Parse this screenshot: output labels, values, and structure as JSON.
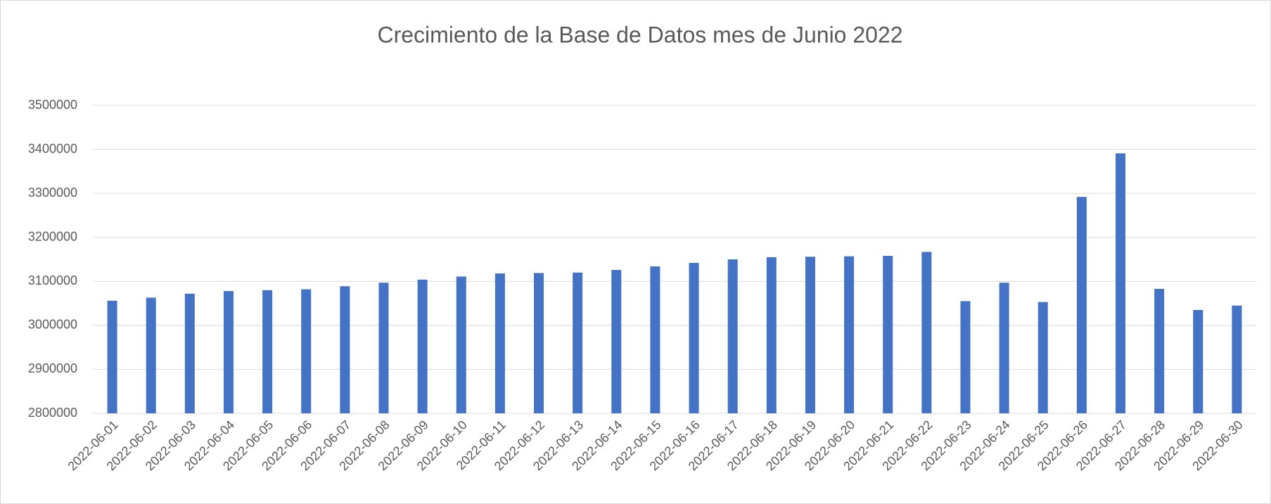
{
  "chart_data": {
    "type": "bar",
    "title": "Crecimiento de la Base de Datos mes de Junio 2022",
    "categories": [
      "2022-06-01",
      "2022-06-02",
      "2022-06-03",
      "2022-06-04",
      "2022-06-05",
      "2022-06-06",
      "2022-06-07",
      "2022-06-08",
      "2022-06-09",
      "2022-06-10",
      "2022-06-11",
      "2022-06-12",
      "2022-06-13",
      "2022-06-14",
      "2022-06-15",
      "2022-06-16",
      "2022-06-17",
      "2022-06-18",
      "2022-06-19",
      "2022-06-20",
      "2022-06-21",
      "2022-06-22",
      "2022-06-23",
      "2022-06-24",
      "2022-06-25",
      "2022-06-26",
      "2022-06-27",
      "2022-06-28",
      "2022-06-29",
      "2022-06-30"
    ],
    "values": [
      3056000,
      3063000,
      3072000,
      3078000,
      3080000,
      3082000,
      3089000,
      3097000,
      3104000,
      3111000,
      3118000,
      3119000,
      3120000,
      3126000,
      3134000,
      3142000,
      3150000,
      3155000,
      3156000,
      3157000,
      3158000,
      3167000,
      3055000,
      3097000,
      3053000,
      3292000,
      3391000,
      3083000,
      3035000,
      3045000
    ],
    "color": "#4472c4",
    "ylim": [
      2800000,
      3500000
    ],
    "yticks": [
      2800000,
      2900000,
      3000000,
      3100000,
      3200000,
      3300000,
      3400000,
      3500000
    ],
    "grid": true
  }
}
